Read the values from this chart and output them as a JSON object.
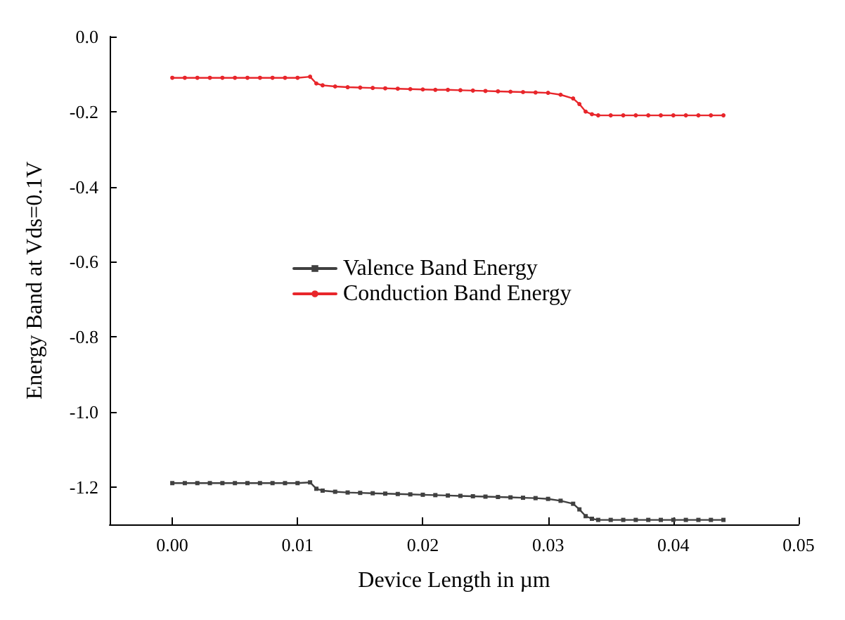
{
  "chart_data": {
    "type": "line",
    "xlabel": "Device Length in µm",
    "ylabel": "Energy Band at Vds=0.1V",
    "x": [
      0,
      0.001,
      0.002,
      0.003,
      0.004,
      0.005,
      0.006,
      0.007,
      0.008,
      0.009,
      0.01,
      0.011,
      0.0115,
      0.012,
      0.013,
      0.014,
      0.015,
      0.016,
      0.017,
      0.018,
      0.019,
      0.02,
      0.021,
      0.022,
      0.023,
      0.024,
      0.025,
      0.026,
      0.027,
      0.028,
      0.029,
      0.03,
      0.031,
      0.032,
      0.0325,
      0.033,
      0.0335,
      0.034,
      0.035,
      0.036,
      0.037,
      0.038,
      0.039,
      0.04,
      0.041,
      0.042,
      0.043,
      0.044
    ],
    "series": [
      {
        "name": "Valence Band Energy",
        "color": "#404040",
        "marker": "square",
        "values": [
          -1.19,
          -1.19,
          -1.19,
          -1.19,
          -1.19,
          -1.19,
          -1.19,
          -1.19,
          -1.19,
          -1.19,
          -1.19,
          -1.188,
          -1.205,
          -1.21,
          -1.213,
          -1.215,
          -1.216,
          -1.217,
          -1.218,
          -1.219,
          -1.22,
          -1.221,
          -1.222,
          -1.223,
          -1.224,
          -1.225,
          -1.226,
          -1.227,
          -1.228,
          -1.229,
          -1.23,
          -1.232,
          -1.237,
          -1.245,
          -1.26,
          -1.278,
          -1.285,
          -1.288,
          -1.288,
          -1.288,
          -1.288,
          -1.288,
          -1.288,
          -1.288,
          -1.288,
          -1.288,
          -1.288,
          -1.288
        ]
      },
      {
        "name": "Conduction Band Energy",
        "color": "#e8262b",
        "marker": "circle",
        "values": [
          -0.11,
          -0.11,
          -0.11,
          -0.11,
          -0.11,
          -0.11,
          -0.11,
          -0.11,
          -0.11,
          -0.11,
          -0.11,
          -0.107,
          -0.125,
          -0.13,
          -0.133,
          -0.135,
          -0.136,
          -0.137,
          -0.138,
          -0.139,
          -0.14,
          -0.141,
          -0.142,
          -0.142,
          -0.143,
          -0.144,
          -0.145,
          -0.146,
          -0.147,
          -0.148,
          -0.149,
          -0.15,
          -0.155,
          -0.165,
          -0.18,
          -0.2,
          -0.207,
          -0.21,
          -0.21,
          -0.21,
          -0.21,
          -0.21,
          -0.21,
          -0.21,
          -0.21,
          -0.21,
          -0.21,
          -0.21
        ]
      }
    ],
    "xlim": [
      -0.005,
      0.05
    ],
    "xticks": [
      {
        "value": 0,
        "label": "0.00"
      },
      {
        "value": 0.01,
        "label": "0.01"
      },
      {
        "value": 0.02,
        "label": "0.02"
      },
      {
        "value": 0.03,
        "label": "0.03"
      },
      {
        "value": 0.04,
        "label": "0.04"
      },
      {
        "value": 0.05,
        "label": "0.05"
      }
    ],
    "ylim": [
      -1.3,
      0
    ],
    "yticks": [
      {
        "value": -1.2,
        "label": "-1.2"
      },
      {
        "value": -1,
        "label": "-1.0"
      },
      {
        "value": -0.8,
        "label": "-0.8"
      },
      {
        "value": -0.6,
        "label": "-0.6"
      },
      {
        "value": -0.4,
        "label": "-0.4"
      },
      {
        "value": -0.2,
        "label": "-0.2"
      },
      {
        "value": 0,
        "label": "0.0"
      }
    ],
    "legend": "center",
    "grid": false,
    "line_style": "solid"
  }
}
